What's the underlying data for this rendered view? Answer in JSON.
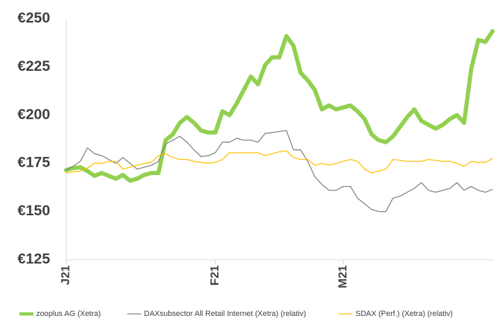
{
  "chart_data": {
    "type": "line",
    "categories": [
      "J21",
      null,
      null,
      null,
      null,
      null,
      null,
      null,
      null,
      null,
      null,
      null,
      null,
      null,
      null,
      null,
      null,
      null,
      null,
      null,
      null,
      "F21",
      null,
      null,
      null,
      null,
      null,
      null,
      null,
      null,
      null,
      null,
      null,
      null,
      null,
      null,
      null,
      null,
      null,
      "M21",
      null,
      null,
      null,
      null,
      null,
      null,
      null,
      null,
      null,
      null,
      null,
      null,
      null,
      null,
      null,
      null,
      null,
      null,
      null,
      null,
      null
    ],
    "series": [
      {
        "name": "zooplus AG (Xetra)",
        "color": "#92d050",
        "width": 6,
        "values": [
          171.5,
          172.5,
          173,
          171,
          168.5,
          170,
          168.5,
          167,
          169,
          166,
          167,
          169,
          170,
          170,
          187,
          190,
          196,
          199,
          196,
          192,
          191,
          191,
          202,
          200,
          206,
          213,
          220,
          216,
          226,
          230,
          230,
          241,
          236,
          222,
          218,
          213,
          203,
          205,
          203,
          204,
          205,
          202,
          198,
          190,
          187,
          186,
          189,
          194,
          199,
          203,
          197,
          195,
          193,
          195,
          198,
          200,
          196,
          224,
          239,
          238,
          243.5
        ]
      },
      {
        "name": "DAXsubsector All Retail Internet (Xetra) (relativ)",
        "color": "#808080",
        "width": 1.3,
        "values": [
          171.5,
          173.5,
          176,
          183,
          180,
          179,
          177,
          175,
          178,
          175,
          172,
          173,
          174,
          176,
          185,
          187,
          189,
          186,
          182,
          178.5,
          179,
          180.5,
          186,
          186,
          188,
          187,
          187,
          186,
          190.5,
          191,
          191.5,
          192,
          182,
          182,
          176,
          168,
          164,
          161,
          161,
          163,
          163,
          157,
          154,
          151,
          150,
          150,
          157,
          158,
          160,
          162,
          165,
          161,
          160,
          161,
          162,
          165,
          161,
          163,
          161,
          160,
          161.5
        ]
      },
      {
        "name": "SDAX (Perf.) (Xetra) (relativ)",
        "color": "#ffc000",
        "width": 1.3,
        "values": [
          170,
          170.5,
          171,
          172.5,
          175,
          175,
          176,
          176,
          172,
          173,
          174,
          175,
          175.5,
          179,
          180,
          178,
          177,
          177,
          176,
          175.5,
          175,
          175.5,
          177,
          180.5,
          180.5,
          180.5,
          180.5,
          180.5,
          179,
          180,
          181,
          181.5,
          178,
          177,
          177,
          174,
          175,
          174,
          175,
          176,
          177,
          176,
          172,
          170,
          171,
          172,
          177,
          176.5,
          176,
          176,
          176,
          177,
          176.5,
          176,
          176,
          175,
          173.5,
          176,
          175.5,
          175.5,
          177.5
        ]
      }
    ],
    "ylim": [
      125,
      250
    ],
    "yticks": [
      {
        "value": 125,
        "label": "€125"
      },
      {
        "value": 150,
        "label": "€150"
      },
      {
        "value": 175,
        "label": "€175"
      },
      {
        "value": 200,
        "label": "€200"
      },
      {
        "value": 225,
        "label": "€225"
      },
      {
        "value": 250,
        "label": "€250"
      }
    ],
    "grid": false
  }
}
